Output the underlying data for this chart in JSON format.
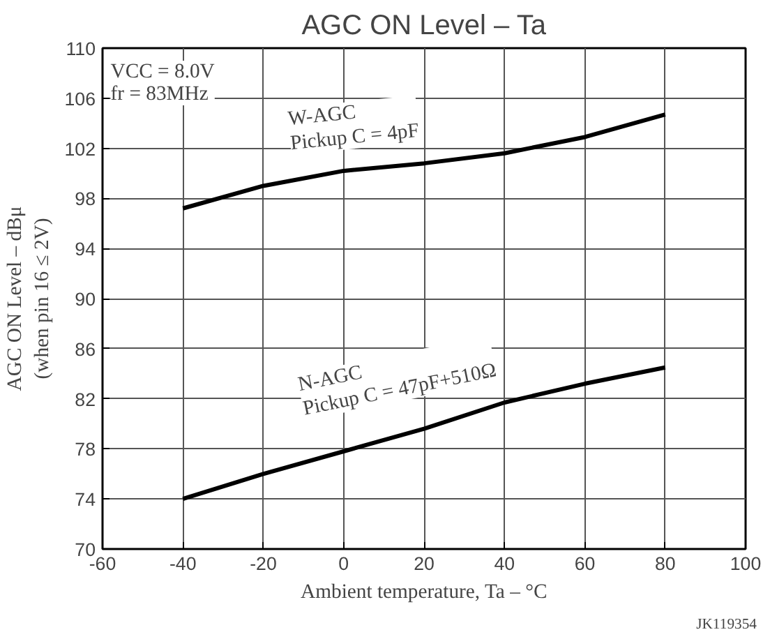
{
  "chart_data": {
    "type": "line",
    "title": "AGC ON Level – Ta",
    "xlabel": "Ambient temperature, Ta – °C",
    "ylabel": "AGC ON Level – dBμ\n(when pin 16 ≤ 2V)",
    "x": [
      -40,
      -20,
      0,
      20,
      40,
      60,
      80
    ],
    "series": [
      {
        "color": "#000000",
        "values": [
          97.2,
          99.0,
          100.2,
          100.8,
          101.6,
          102.9,
          104.7
        ]
      },
      {
        "color": "#000000",
        "values": [
          74.0,
          76.0,
          77.8,
          79.6,
          81.7,
          83.2,
          84.5
        ]
      }
    ],
    "xlim": [
      -60,
      100
    ],
    "xticks": [
      -60,
      -40,
      -20,
      0,
      20,
      40,
      60,
      80,
      100
    ],
    "ylim": [
      70,
      110
    ],
    "yticks": [
      70,
      74,
      78,
      82,
      86,
      90,
      94,
      98,
      102,
      106,
      110
    ],
    "grid": true,
    "marker": "none",
    "line_style": "solid",
    "annotations": [
      "VCC = 8.0V\nfr = 83MHz",
      {
        "text": "W-AGC\nPickup C = 4pF",
        "x": 20,
        "y": 100.8
      },
      {
        "text": "N-AGC\nPickup C = 47pF+510Ω",
        "x": 20,
        "y": 79.6
      },
      "JK119354"
    ]
  }
}
